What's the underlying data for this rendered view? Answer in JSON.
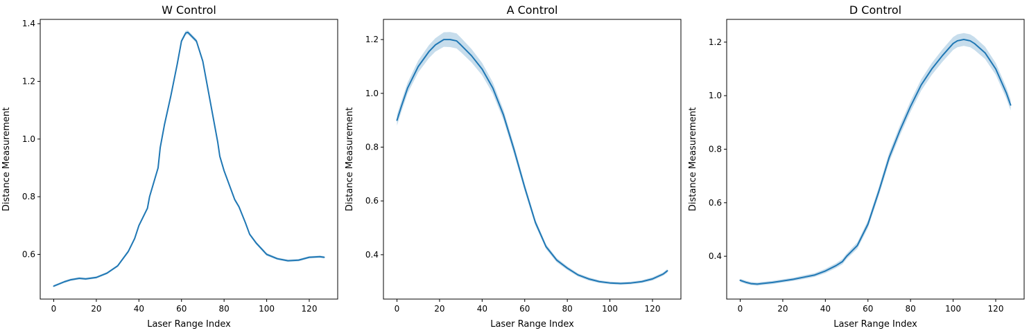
{
  "chart_data": [
    {
      "type": "line",
      "title": "W Control",
      "xlabel": "Laser Range Index",
      "ylabel": "Distance Measurement",
      "xlim": [
        -6.35,
        133.35
      ],
      "ylim": [
        0.445,
        1.415
      ],
      "xticks": [
        0,
        20,
        40,
        60,
        80,
        100,
        120
      ],
      "yticks": [
        0.6,
        0.8,
        1.0,
        1.2,
        1.4
      ],
      "ytick_labels": [
        "0.6",
        "0.8",
        "1.0",
        "1.2",
        "1.4"
      ],
      "line_color": "#1f77b4",
      "band_color": "#1f77b4",
      "grid": false,
      "series": [
        {
          "x": [
            0,
            5,
            8,
            12,
            15,
            20,
            25,
            30,
            35,
            38,
            40,
            42,
            44,
            45,
            47,
            49,
            50,
            52,
            55,
            58,
            60,
            62,
            63,
            65,
            67,
            70,
            72,
            75,
            77,
            78,
            80,
            82,
            84,
            85,
            87,
            90,
            92,
            95,
            100,
            105,
            110,
            115,
            120,
            125,
            127
          ],
          "y": [
            0.49,
            0.505,
            0.512,
            0.517,
            0.515,
            0.52,
            0.535,
            0.56,
            0.61,
            0.655,
            0.7,
            0.73,
            0.76,
            0.8,
            0.85,
            0.9,
            0.97,
            1.05,
            1.15,
            1.26,
            1.34,
            1.368,
            1.37,
            1.355,
            1.34,
            1.27,
            1.19,
            1.07,
            0.99,
            0.94,
            0.89,
            0.85,
            0.81,
            0.79,
            0.765,
            0.71,
            0.67,
            0.64,
            0.6,
            0.585,
            0.578,
            0.58,
            0.59,
            0.592,
            0.59
          ],
          "band": [
            0.004,
            0.004,
            0.004,
            0.004,
            0.004,
            0.004,
            0.004,
            0.004,
            0.005,
            0.005,
            0.005,
            0.005,
            0.005,
            0.005,
            0.005,
            0.005,
            0.005,
            0.006,
            0.006,
            0.006,
            0.006,
            0.007,
            0.007,
            0.007,
            0.007,
            0.007,
            0.006,
            0.006,
            0.006,
            0.006,
            0.006,
            0.006,
            0.005,
            0.005,
            0.005,
            0.005,
            0.005,
            0.005,
            0.005,
            0.004,
            0.004,
            0.004,
            0.004,
            0.004,
            0.004
          ]
        }
      ]
    },
    {
      "type": "line",
      "title": "A Control",
      "xlabel": "Laser Range Index",
      "ylabel": "Distance Measurement",
      "xlim": [
        -6.35,
        133.35
      ],
      "ylim": [
        0.235,
        1.275
      ],
      "xticks": [
        0,
        20,
        40,
        60,
        80,
        100,
        120
      ],
      "yticks": [
        0.4,
        0.6,
        0.8,
        1.0,
        1.2
      ],
      "ytick_labels": [
        "0.4",
        "0.6",
        "0.8",
        "1.0",
        "1.2"
      ],
      "line_color": "#1f77b4",
      "band_color": "#1f77b4",
      "grid": false,
      "series": [
        {
          "x": [
            0,
            2,
            5,
            10,
            15,
            18,
            20,
            22,
            25,
            28,
            30,
            35,
            40,
            45,
            50,
            55,
            60,
            65,
            70,
            75,
            80,
            85,
            90,
            95,
            100,
            105,
            110,
            115,
            120,
            125,
            127
          ],
          "y": [
            0.9,
            0.95,
            1.02,
            1.1,
            1.155,
            1.18,
            1.19,
            1.2,
            1.2,
            1.195,
            1.18,
            1.14,
            1.09,
            1.02,
            0.92,
            0.79,
            0.65,
            0.52,
            0.43,
            0.38,
            0.35,
            0.325,
            0.31,
            0.3,
            0.295,
            0.293,
            0.295,
            0.3,
            0.31,
            0.328,
            0.34
          ],
          "band": [
            0.02,
            0.02,
            0.02,
            0.022,
            0.024,
            0.025,
            0.026,
            0.027,
            0.028,
            0.028,
            0.027,
            0.025,
            0.023,
            0.021,
            0.019,
            0.017,
            0.014,
            0.011,
            0.009,
            0.008,
            0.007,
            0.006,
            0.006,
            0.005,
            0.005,
            0.005,
            0.005,
            0.005,
            0.006,
            0.006,
            0.007
          ]
        }
      ]
    },
    {
      "type": "line",
      "title": "D Control",
      "xlabel": "Laser Range Index",
      "ylabel": "Distance Measurement",
      "xlim": [
        -6.35,
        133.35
      ],
      "ylim": [
        0.24,
        1.285
      ],
      "xticks": [
        0,
        20,
        40,
        60,
        80,
        100,
        120
      ],
      "yticks": [
        0.4,
        0.6,
        0.8,
        1.0,
        1.2
      ],
      "ytick_labels": [
        "0.4",
        "0.6",
        "0.8",
        "1.0",
        "1.2"
      ],
      "line_color": "#1f77b4",
      "band_color": "#1f77b4",
      "grid": false,
      "series": [
        {
          "x": [
            0,
            3,
            5,
            8,
            10,
            15,
            20,
            25,
            30,
            35,
            40,
            45,
            48,
            50,
            55,
            60,
            65,
            70,
            75,
            80,
            85,
            90,
            95,
            100,
            102,
            105,
            108,
            110,
            115,
            120,
            125,
            127
          ],
          "y": [
            0.31,
            0.302,
            0.298,
            0.296,
            0.298,
            0.302,
            0.308,
            0.314,
            0.322,
            0.33,
            0.345,
            0.365,
            0.38,
            0.4,
            0.44,
            0.52,
            0.64,
            0.77,
            0.87,
            0.96,
            1.04,
            1.1,
            1.15,
            1.195,
            1.205,
            1.21,
            1.205,
            1.195,
            1.16,
            1.1,
            1.01,
            0.965
          ],
          "band": [
            0.006,
            0.006,
            0.006,
            0.006,
            0.006,
            0.006,
            0.006,
            0.006,
            0.007,
            0.007,
            0.008,
            0.009,
            0.01,
            0.01,
            0.012,
            0.014,
            0.016,
            0.018,
            0.019,
            0.02,
            0.021,
            0.022,
            0.023,
            0.024,
            0.024,
            0.024,
            0.024,
            0.024,
            0.023,
            0.022,
            0.021,
            0.02
          ]
        }
      ]
    }
  ]
}
